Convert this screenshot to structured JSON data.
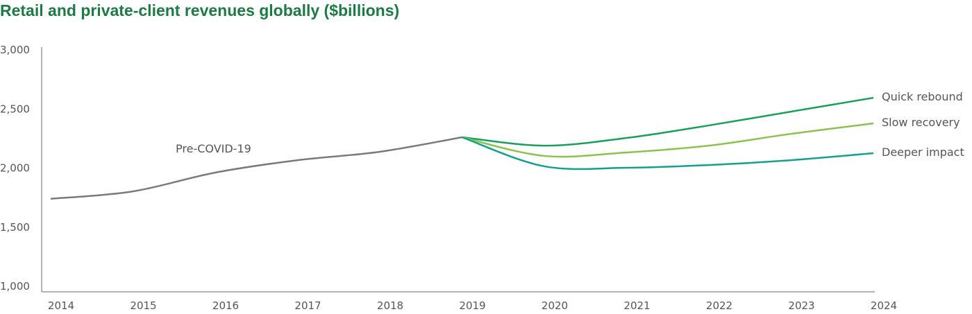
{
  "chart_data": {
    "type": "line",
    "title": "Retail and private-client revenues globally ($billions)",
    "xlabel": "",
    "ylabel": "",
    "x": [
      2014,
      2015,
      2016,
      2017,
      2018,
      2019,
      2020,
      2021,
      2022,
      2023,
      2024
    ],
    "ylim": [
      1000,
      3000
    ],
    "yticks": [
      "1,000",
      "1,500",
      "2,000",
      "2,500",
      "3,000"
    ],
    "xticks": [
      "2014",
      "2015",
      "2016",
      "2017",
      "2018",
      "2019",
      "2020",
      "2021",
      "2022",
      "2023",
      "2024"
    ],
    "grid": false,
    "legend": "inline labels at line ends",
    "series": [
      {
        "name": "Pre-COVID-19",
        "color": "#7a7a7a",
        "x": [
          2014,
          2015,
          2016,
          2017,
          2018,
          2019
        ],
        "values": [
          1740,
          1803,
          1962,
          2067,
          2138,
          2261
        ]
      },
      {
        "name": "Quick rebound",
        "color": "#1a9e5a",
        "x": [
          2019,
          2020,
          2021,
          2022,
          2023,
          2024
        ],
        "values": [
          2261,
          2190,
          2255,
          2361,
          2478,
          2595
        ]
      },
      {
        "name": "Slow recovery",
        "color": "#8cc152",
        "x": [
          2019,
          2020,
          2021,
          2022,
          2023,
          2024
        ],
        "values": [
          2261,
          2103,
          2132,
          2190,
          2290,
          2378
        ]
      },
      {
        "name": "Deeper impact",
        "color": "#14a08a",
        "x": [
          2019,
          2020,
          2021,
          2022,
          2023,
          2024
        ],
        "values": [
          2261,
          2015,
          2003,
          2026,
          2067,
          2126
        ]
      }
    ]
  }
}
